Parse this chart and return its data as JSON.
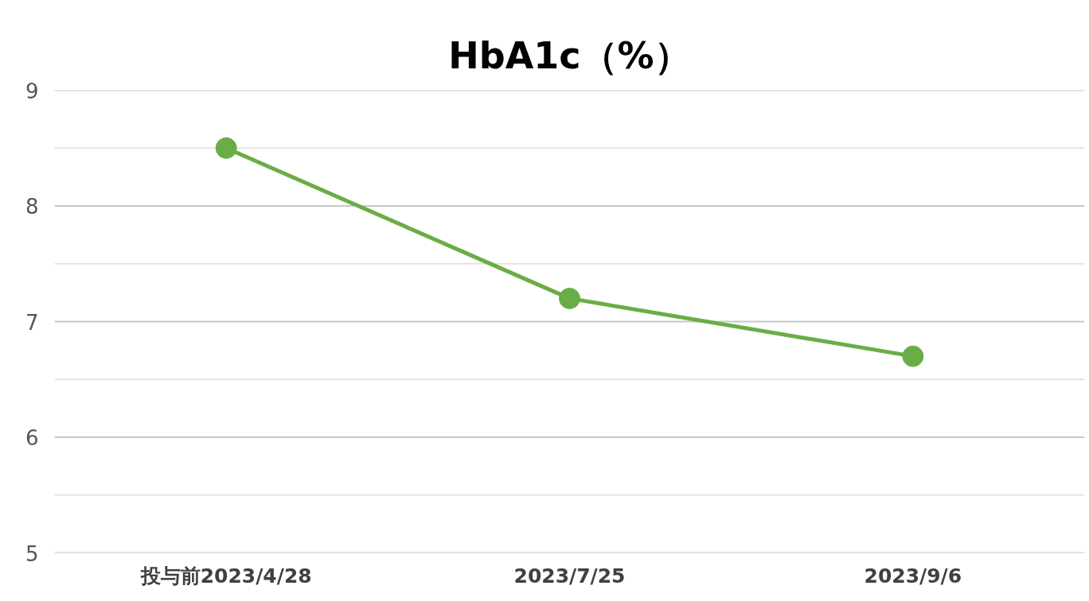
{
  "chart_data": {
    "type": "line",
    "title": "HbA1c（%）",
    "categories": [
      "投与前2023/4/28",
      "2023/7/25",
      "2023/9/6"
    ],
    "values": [
      8.5,
      7.2,
      6.7
    ],
    "color": "#6aad47",
    "ylim": [
      5,
      9
    ],
    "yticks": [
      5,
      {
        "value": 5.5,
        "label": null
      },
      6,
      {
        "value": 6.5,
        "label": null
      },
      7,
      {
        "value": 7.5,
        "label": null
      },
      8,
      {
        "value": 8.5,
        "label": null
      },
      9
    ],
    "grid": "y",
    "marker": "circle",
    "line_style": "solid"
  }
}
